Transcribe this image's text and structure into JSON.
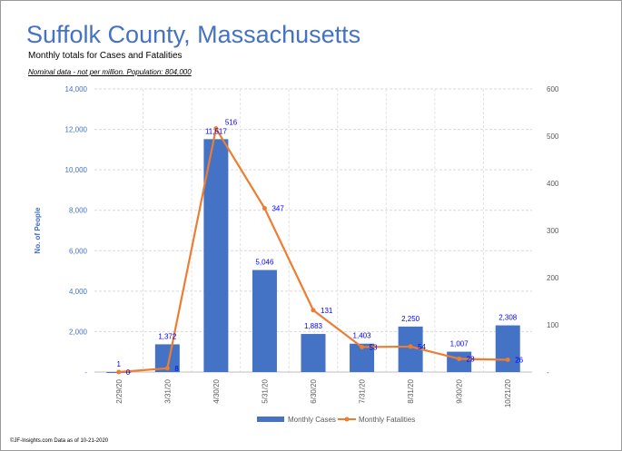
{
  "title": "Suffolk County, Massachusetts",
  "subtitle": "Monthly totals for Cases and Fatalities",
  "note": "Nominal data - not per million.  Population: 804,000",
  "footer": "©JF-Insights.com  Data as of 10-21-2020",
  "chart_data": {
    "type": "bar+line",
    "categories": [
      "2/29/20",
      "3/31/20",
      "4/30/20",
      "5/31/20",
      "6/30/20",
      "7/31/20",
      "8/31/20",
      "9/30/20",
      "10/21/20"
    ],
    "series": [
      {
        "name": "Monthly Cases",
        "type": "bar",
        "axis": "left",
        "color": "#4472c4",
        "values": [
          1,
          1372,
          11517,
          5046,
          1883,
          1403,
          2250,
          1007,
          2308
        ],
        "labels": [
          "1",
          "1,372",
          "11,517",
          "5,046",
          "1,883",
          "1,403",
          "2,250",
          "1,007",
          "2,308"
        ]
      },
      {
        "name": "Monthly Fatalities",
        "type": "line",
        "axis": "right",
        "color": "#ed7d31",
        "values": [
          0,
          8,
          516,
          347,
          131,
          53,
          54,
          28,
          26
        ],
        "labels": [
          "0",
          "8",
          "516",
          "347",
          "131",
          "53",
          "54",
          "28",
          "26"
        ]
      }
    ],
    "ylabel": "No. of People",
    "ylim": [
      0,
      14000
    ],
    "yticks": [
      "-",
      "2,000",
      "4,000",
      "6,000",
      "8,000",
      "10,000",
      "12,000",
      "14,000"
    ],
    "y2lim": [
      0,
      600
    ],
    "y2ticks": [
      "-",
      "100",
      "200",
      "300",
      "400",
      "500",
      "600"
    ],
    "grid": true,
    "legend": "bottom",
    "label_color": "#0000ff"
  }
}
